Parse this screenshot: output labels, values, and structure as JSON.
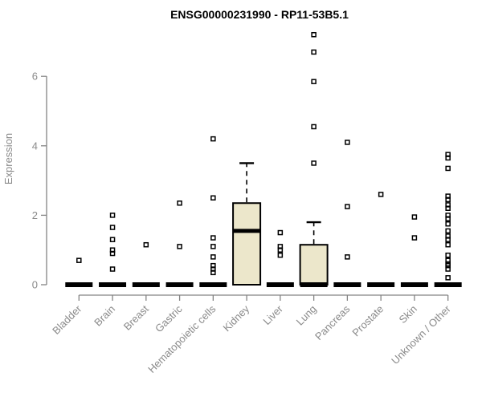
{
  "chart_data": {
    "type": "boxplot",
    "title": "ENSG00000231990 - RP11-53B5.1",
    "ylabel": "Expression",
    "xlabel": "",
    "yticks": [
      0,
      2,
      4,
      6
    ],
    "ylim": [
      0,
      7.4
    ],
    "grid": false,
    "legend": "none",
    "colors": {
      "box_fill": "#ECE7CB",
      "box_stroke": "#000000",
      "median": "#000000",
      "outlier": "#000000",
      "axis_line": "#848484",
      "tick_text": "#8a8a8a",
      "title_text": "#000000"
    },
    "categories": [
      "Bladder",
      "Brain",
      "Breast",
      "Gastric",
      "Hematopoietic cells",
      "Kidney",
      "Liver",
      "Lung",
      "Pancreas",
      "Prostate",
      "Skin",
      "Unknown / Other"
    ],
    "series": [
      {
        "category": "Bladder",
        "q1": 0,
        "median": 0,
        "q3": 0,
        "whisker_low": 0,
        "whisker_high": 0,
        "outliers": [
          0.7
        ]
      },
      {
        "category": "Brain",
        "q1": 0,
        "median": 0,
        "q3": 0,
        "whisker_low": 0,
        "whisker_high": 0,
        "outliers": [
          2.0,
          1.65,
          1.3,
          1.0,
          0.9,
          0.45
        ]
      },
      {
        "category": "Breast",
        "q1": 0,
        "median": 0,
        "q3": 0,
        "whisker_low": 0,
        "whisker_high": 0,
        "outliers": [
          1.15
        ]
      },
      {
        "category": "Gastric",
        "q1": 0,
        "median": 0,
        "q3": 0,
        "whisker_low": 0,
        "whisker_high": 0,
        "outliers": [
          2.35,
          1.1
        ]
      },
      {
        "category": "Hematopoietic cells",
        "q1": 0,
        "median": 0,
        "q3": 0,
        "whisker_low": 0,
        "whisker_high": 0,
        "outliers": [
          4.2,
          2.5,
          1.35,
          1.1,
          0.8,
          0.55,
          0.45,
          0.35
        ]
      },
      {
        "category": "Kidney",
        "q1": 0,
        "median": 1.55,
        "q3": 2.35,
        "whisker_low": 0,
        "whisker_high": 3.5,
        "outliers": []
      },
      {
        "category": "Liver",
        "q1": 0,
        "median": 0,
        "q3": 0,
        "whisker_low": 0,
        "whisker_high": 0,
        "outliers": [
          1.5,
          1.1,
          1.0,
          0.85
        ]
      },
      {
        "category": "Lung",
        "q1": 0,
        "median": 0,
        "q3": 1.15,
        "whisker_low": 0,
        "whisker_high": 1.8,
        "outliers": [
          7.2,
          6.7,
          5.85,
          4.55,
          3.5
        ]
      },
      {
        "category": "Pancreas",
        "q1": 0,
        "median": 0,
        "q3": 0,
        "whisker_low": 0,
        "whisker_high": 0,
        "outliers": [
          4.1,
          2.25,
          0.8
        ]
      },
      {
        "category": "Prostate",
        "q1": 0,
        "median": 0,
        "q3": 0,
        "whisker_low": 0,
        "whisker_high": 0,
        "outliers": [
          2.6
        ]
      },
      {
        "category": "Skin",
        "q1": 0,
        "median": 0,
        "q3": 0,
        "whisker_low": 0,
        "whisker_high": 0,
        "outliers": [
          1.95,
          1.35
        ]
      },
      {
        "category": "Unknown / Other",
        "q1": 0,
        "median": 0,
        "q3": 0,
        "whisker_low": 0,
        "whisker_high": 0,
        "outliers": [
          3.75,
          3.65,
          3.35,
          2.55,
          2.45,
          2.3,
          2.2,
          2.0,
          1.9,
          1.75,
          1.55,
          1.4,
          1.3,
          1.15,
          0.85,
          0.7,
          0.6,
          0.55,
          0.45,
          0.2
        ]
      }
    ]
  }
}
